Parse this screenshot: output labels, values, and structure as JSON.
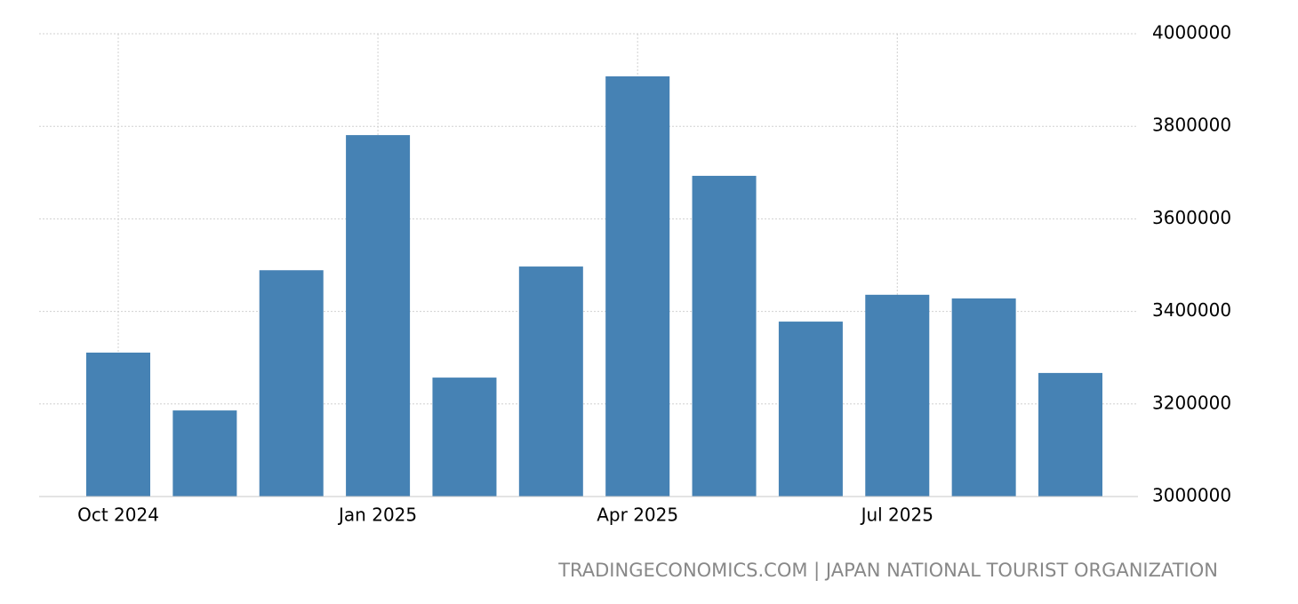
{
  "chart_data": {
    "type": "bar",
    "categories": [
      "Oct 2024",
      null,
      null,
      "Jan 2025",
      null,
      null,
      "Apr 2025",
      null,
      null,
      "Jul 2025",
      null,
      null
    ],
    "values": [
      3311000,
      3186000,
      3489000,
      3781000,
      3257000,
      3497000,
      3908000,
      3693000,
      3378000,
      3436000,
      3428000,
      3267000
    ],
    "color": "#4682b4",
    "ylim": [
      3000000,
      4000000
    ],
    "yticks": [
      3000000,
      3200000,
      3400000,
      3600000,
      3800000,
      4000000
    ],
    "grid": true,
    "source": "TRADINGECONOMICS.COM | JAPAN NATIONAL TOURIST ORGANIZATION"
  }
}
